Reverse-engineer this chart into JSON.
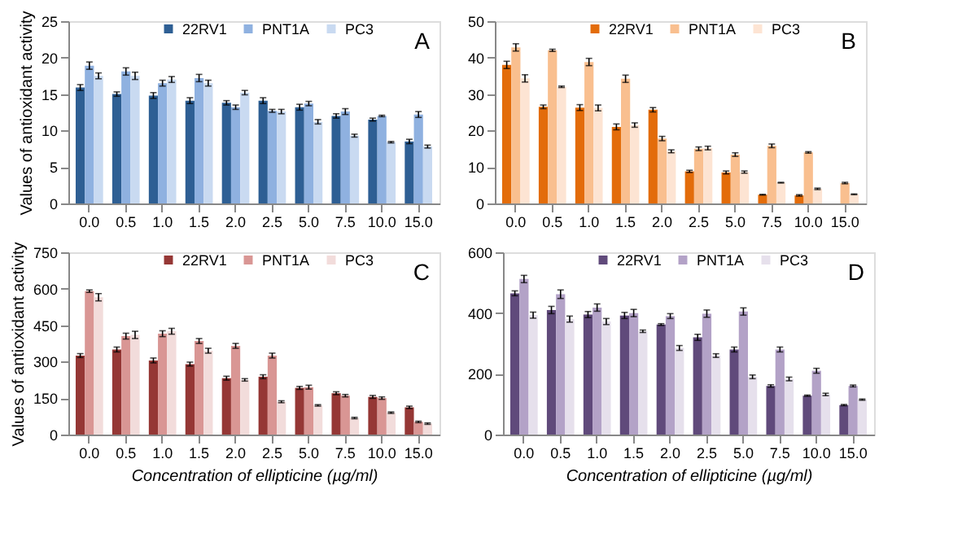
{
  "chart_data": [
    {
      "type": "bar",
      "ylabel": "Values of antioxidant activity",
      "categories": [
        "0.0",
        "0.5",
        "1.0",
        "1.5",
        "2.0",
        "2.5",
        "5.0",
        "7.5",
        "10.0",
        "15.0"
      ],
      "ylim": [
        0,
        25
      ],
      "yticks": [
        0,
        5,
        10,
        15,
        20,
        25
      ],
      "legend": "top",
      "grid": false,
      "annotations": [
        "A"
      ],
      "series": [
        {
          "name": "22RV1",
          "color": "#2e5f94",
          "values": [
            15.9,
            15.0,
            14.8,
            14.1,
            13.8,
            14.1,
            13.2,
            12.0,
            11.5,
            8.5
          ],
          "errors": [
            0.4,
            0.3,
            0.4,
            0.4,
            0.3,
            0.4,
            0.4,
            0.3,
            0.2,
            0.3
          ]
        },
        {
          "name": "PNT1A",
          "color": "#8fb1e0",
          "values": [
            18.9,
            18.1,
            16.5,
            17.2,
            13.2,
            12.7,
            13.7,
            12.6,
            12.0,
            12.2
          ],
          "errors": [
            0.5,
            0.5,
            0.4,
            0.5,
            0.3,
            0.2,
            0.3,
            0.4,
            0.1,
            0.4
          ]
        },
        {
          "name": "PC3",
          "color": "#c9daf1",
          "values": [
            17.5,
            17.5,
            17.0,
            16.5,
            15.2,
            12.6,
            11.2,
            9.3,
            8.4,
            7.8
          ],
          "errors": [
            0.4,
            0.5,
            0.4,
            0.4,
            0.3,
            0.3,
            0.3,
            0.2,
            0.1,
            0.2
          ]
        }
      ]
    },
    {
      "type": "bar",
      "categories": [
        "0.0",
        "0.5",
        "1.0",
        "1.5",
        "2.0",
        "2.5",
        "5.0",
        "7.5",
        "10.0",
        "15.0"
      ],
      "ylim": [
        0,
        50
      ],
      "yticks": [
        0,
        10,
        20,
        30,
        40,
        50
      ],
      "legend": "top",
      "grid": false,
      "annotations": [
        "B"
      ],
      "series": [
        {
          "name": "22RV1",
          "color": "#e36c0a",
          "values": [
            38.0,
            26.5,
            26.3,
            21.0,
            25.7,
            8.8,
            8.5,
            2.4,
            2.2,
            null
          ],
          "errors": [
            1.0,
            0.5,
            0.8,
            0.8,
            0.6,
            0.3,
            0.4,
            0.1,
            0.2,
            null
          ]
        },
        {
          "name": "PNT1A",
          "color": "#f9bf8f",
          "values": [
            42.8,
            42.0,
            38.8,
            34.2,
            17.8,
            15.0,
            13.4,
            15.8,
            14.0,
            5.6
          ],
          "errors": [
            1.0,
            0.3,
            1.0,
            1.0,
            0.6,
            0.5,
            0.5,
            0.5,
            0.2,
            0.2
          ]
        },
        {
          "name": "PC3",
          "color": "#fde4d3",
          "values": [
            34.3,
            32.0,
            26.2,
            21.5,
            14.3,
            15.2,
            8.6,
            5.7,
            4.0,
            2.5
          ],
          "errors": [
            1.0,
            0.2,
            0.8,
            0.6,
            0.4,
            0.5,
            0.3,
            0.1,
            0.2,
            0.1
          ]
        }
      ]
    },
    {
      "type": "bar",
      "ylabel": "Values of antioxidant activity",
      "xlabel": "Concentration of ellipticine (µg/ml)",
      "categories": [
        "0.0",
        "0.5",
        "1.0",
        "1.5",
        "2.0",
        "2.5",
        "5.0",
        "7.5",
        "10.0",
        "15.0"
      ],
      "ylim": [
        0,
        750
      ],
      "yticks": [
        0,
        150,
        300,
        450,
        600,
        750
      ],
      "legend": "top",
      "grid": false,
      "annotations": [
        "C"
      ],
      "series": [
        {
          "name": "22RV1",
          "color": "#953735",
          "values": [
            325,
            350,
            305,
            290,
            232,
            238,
            192,
            170,
            155,
            112
          ],
          "errors": [
            8,
            10,
            10,
            8,
            8,
            8,
            6,
            6,
            6,
            5
          ]
        },
        {
          "name": "PNT1A",
          "color": "#d99694",
          "values": [
            590,
            405,
            415,
            385,
            365,
            325,
            195,
            160,
            150,
            52
          ],
          "errors": [
            5,
            12,
            12,
            10,
            10,
            10,
            8,
            5,
            5,
            3
          ]
        },
        {
          "name": "PC3",
          "color": "#f2dcdb",
          "values": [
            565,
            410,
            425,
            345,
            225,
            135,
            120,
            68,
            90,
            45
          ],
          "errors": [
            15,
            15,
            12,
            10,
            5,
            4,
            3,
            3,
            3,
            3
          ]
        }
      ]
    },
    {
      "type": "bar",
      "xlabel": "Concentration of ellipticine (µg/ml)",
      "categories": [
        "0.0",
        "0.5",
        "1.0",
        "1.5",
        "2.0",
        "2.5",
        "5.0",
        "7.5",
        "10.0",
        "15.0"
      ],
      "ylim": [
        0,
        600
      ],
      "yticks": [
        0,
        200,
        400,
        600
      ],
      "legend": "top",
      "grid": false,
      "annotations": [
        "D"
      ],
      "series": [
        {
          "name": "22RV1",
          "color": "#604a7b",
          "values": [
            465,
            410,
            395,
            392,
            362,
            320,
            280,
            160,
            128,
            97
          ],
          "errors": [
            8,
            12,
            10,
            10,
            3,
            10,
            8,
            4,
            2,
            2
          ]
        },
        {
          "name": "PNT1A",
          "color": "#b3a2c7",
          "values": [
            512,
            462,
            418,
            400,
            390,
            398,
            405,
            280,
            210,
            160
          ],
          "errors": [
            12,
            14,
            12,
            12,
            8,
            12,
            12,
            8,
            8,
            3
          ]
        },
        {
          "name": "PC3",
          "color": "#e6e0ec",
          "values": [
            393,
            380,
            372,
            340,
            285,
            260,
            190,
            183,
            132,
            115
          ],
          "errors": [
            10,
            10,
            10,
            4,
            8,
            6,
            6,
            6,
            4,
            2
          ]
        }
      ]
    }
  ]
}
